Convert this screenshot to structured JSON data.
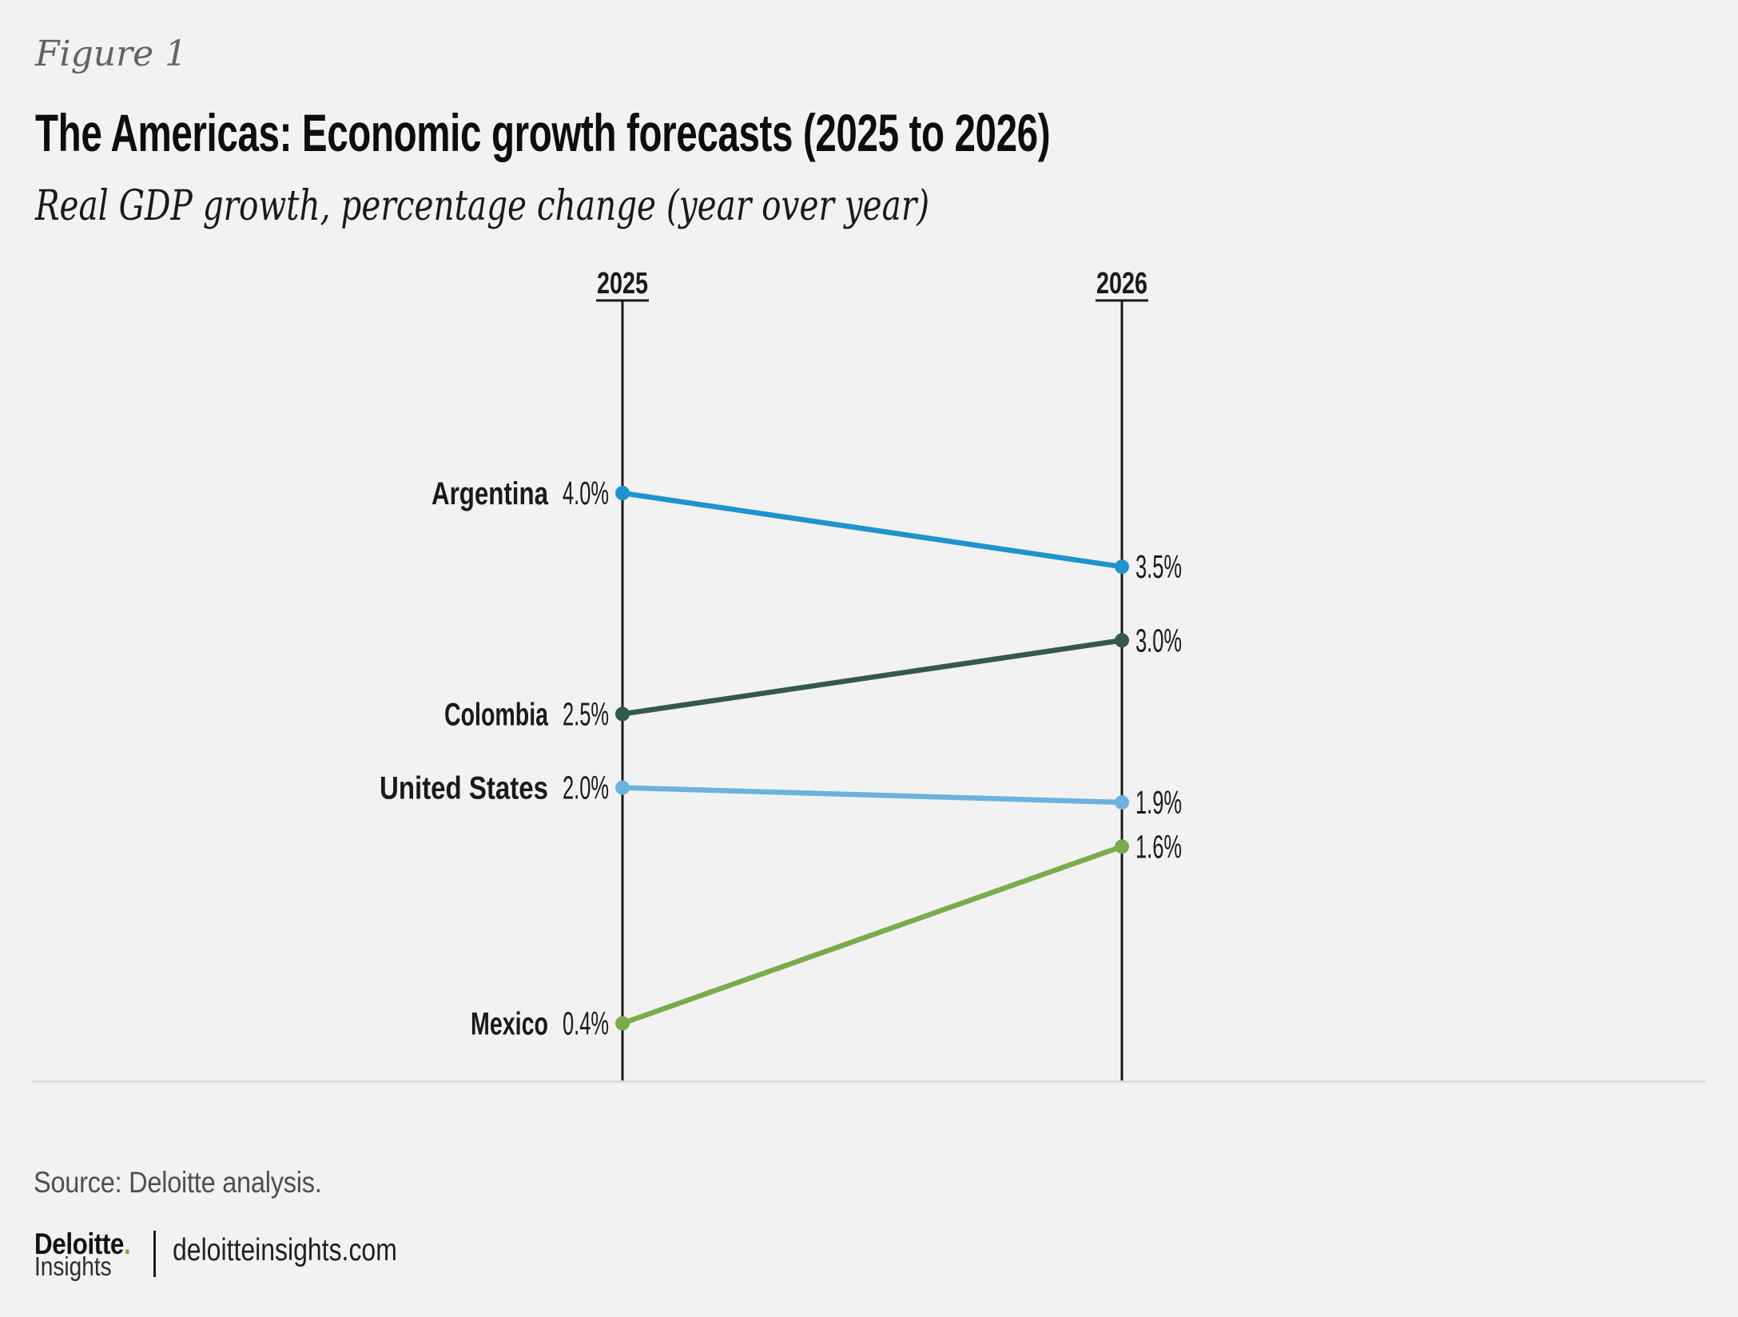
{
  "header": {
    "figure_label": "Figure 1",
    "title": "The Americas: Economic growth forecasts (2025 to 2026)",
    "subtitle": "Real GDP growth, percentage change (year over year)"
  },
  "chart_data": {
    "type": "line",
    "subtype": "slope-chart",
    "title": "The Americas: Economic growth forecasts (2025 to 2026)",
    "ylabel": "Real GDP growth, percentage change (year over year)",
    "x_categories": [
      "2025",
      "2026"
    ],
    "grid": false,
    "legend": "inline-labels",
    "value_range_shown": [
      0.4,
      4.0
    ],
    "axis_color": "#1A1A1A",
    "series": [
      {
        "name": "Argentina",
        "values": [
          4.0,
          3.5
        ],
        "value_labels": [
          "4.0%",
          "3.5%"
        ],
        "color": "#1E93CE"
      },
      {
        "name": "Colombia",
        "values": [
          2.5,
          3.0
        ],
        "value_labels": [
          "2.5%",
          "3.0%"
        ],
        "color": "#34594B"
      },
      {
        "name": "United States",
        "values": [
          2.0,
          1.9
        ],
        "value_labels": [
          "2.0%",
          "1.9%"
        ],
        "color": "#6CB2DF"
      },
      {
        "name": "Mexico",
        "values": [
          0.4,
          1.6
        ],
        "value_labels": [
          "0.4%",
          "1.6%"
        ],
        "color": "#7AAC49"
      }
    ]
  },
  "footer": {
    "source": "Source: Deloitte analysis.",
    "brand": "Deloitte",
    "brand_dot": ".",
    "brand_dot_color": "#7CAF3F",
    "brand_sub": "Insights",
    "site": "deloitteinsights.com"
  }
}
